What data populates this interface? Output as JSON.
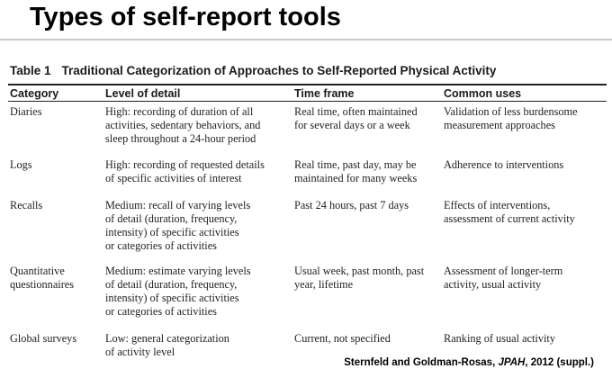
{
  "slide": {
    "title": "Types of self-report tools"
  },
  "table": {
    "number": "Table 1",
    "caption": "Traditional Categorization of Approaches to Self-Reported Physical Activity",
    "headers": [
      "Category",
      "Level of detail",
      "Time frame",
      "Common uses"
    ],
    "rows": [
      {
        "category": "Diaries",
        "level": "High: recording of duration of all\nactivities, sedentary behaviors, and\nsleep throughout a 24-hour period",
        "timeframe": "Real time, often maintained\nfor several days or a week",
        "uses": "Validation of less burdensome\nmeasurement approaches"
      },
      {
        "category": "Logs",
        "level": "High: recording of requested details\nof specific activities of interest",
        "timeframe": "Real time, past day, may be\nmaintained for many weeks",
        "uses": "Adherence to interventions"
      },
      {
        "category": "Recalls",
        "level": "Medium: recall of varying levels\nof detail (duration, frequency,\nintensity) of specific activities\nor categories of activities",
        "timeframe": "Past 24 hours, past 7 days",
        "uses": "Effects of interventions,\nassessment of current activity"
      },
      {
        "category": "Quantitative\nquestionnaires",
        "level": "Medium: estimate varying levels\nof detail (duration, frequency,\nintensity) of specific activities\nor categories of activities",
        "timeframe": "Usual week, past month, past\nyear, lifetime",
        "uses": "Assessment of longer-term\nactivity, usual activity"
      },
      {
        "category": "Global surveys",
        "level": "Low: general categorization\nof activity level",
        "timeframe": "Current, not specified",
        "uses": "Ranking of usual activity"
      }
    ]
  },
  "citation": {
    "authors": "Sternfeld and Goldman-Rosas,",
    "journal": "JPAH",
    "rest": ", 2012 (suppl.)"
  }
}
